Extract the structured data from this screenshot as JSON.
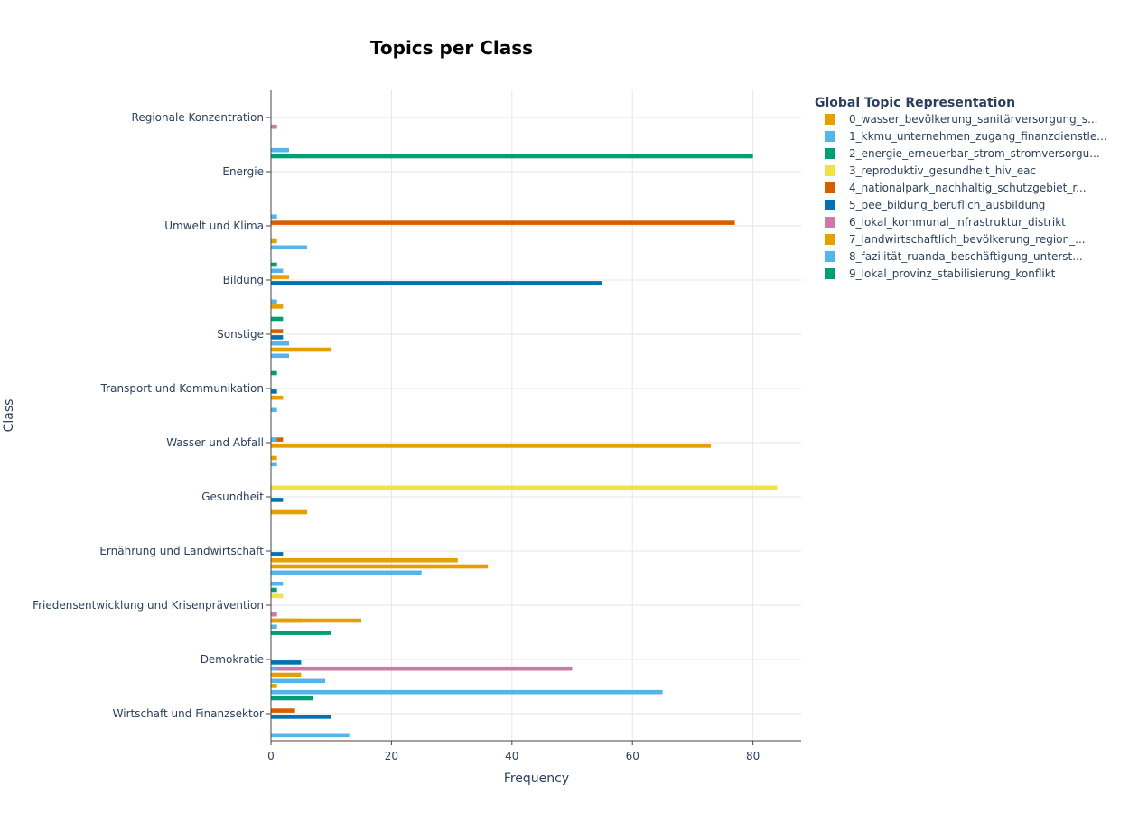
{
  "chart_data": {
    "type": "bar",
    "orientation": "horizontal",
    "title": "Topics per Class",
    "xlabel": "Frequency",
    "ylabel": "Class",
    "xlim": [
      0,
      88
    ],
    "x_ticks": [
      0,
      20,
      40,
      60,
      80
    ],
    "grid": true,
    "legend_position": "right",
    "legend_title": "Global Topic Representation",
    "categories": [
      "Regionale Konzentration",
      "Energie",
      "Umwelt und Klima",
      "Bildung",
      "Sonstige",
      "Transport und Kommunikation",
      "Wasser und Abfall",
      "Gesundheit",
      "Ernährung und Landwirtschaft",
      "Friedensentwicklung und Krisenprävention",
      "Demokratie",
      "Wirtschaft und Finanzsektor"
    ],
    "series": [
      {
        "name": "0_wasser_bevölkerung_sanitärversorgung_s...",
        "color": "#E69F00",
        "values": [
          0,
          0,
          0,
          0,
          2,
          0,
          0,
          0,
          0,
          0,
          0,
          1
        ]
      },
      {
        "name": "1_kkmu_unternehmen_zugang_finanzdienstle...",
        "color": "#56B4E9",
        "values": [
          0,
          0,
          0,
          0,
          0,
          0,
          0,
          0,
          0,
          2,
          0,
          65
        ]
      },
      {
        "name": "2_energie_erneuerbar_strom_stromversorgu...",
        "color": "#009E73",
        "values": [
          0,
          80,
          0,
          1,
          2,
          1,
          0,
          0,
          0,
          1,
          0,
          7
        ]
      },
      {
        "name": "3_reproduktiv_gesundheit_hiv_eac",
        "color": "#F0E442",
        "values": [
          0,
          0,
          0,
          0,
          0,
          0,
          0,
          84,
          0,
          2,
          0,
          0
        ]
      },
      {
        "name": "4_nationalpark_nachhaltig_schutzgebiet_r...",
        "color": "#D55E00",
        "values": [
          0,
          0,
          77,
          0,
          2,
          0,
          2,
          0,
          0,
          0,
          0,
          4
        ]
      },
      {
        "name": "5_pee_bildung_beruflich_ausbildung",
        "color": "#0072B2",
        "values": [
          0,
          0,
          0,
          55,
          2,
          1,
          0,
          2,
          2,
          0,
          5,
          10
        ]
      },
      {
        "name": "6_lokal_kommunal_infrastruktur_distrikt",
        "color": "#CC79A7",
        "values": [
          1,
          0,
          0,
          0,
          2,
          1,
          0,
          0,
          0,
          1,
          50,
          0
        ]
      },
      {
        "name": "7_landwirtschaftlich_bevölkerung_region_...",
        "color": "#E69F00",
        "values": [
          0,
          0,
          1,
          0,
          0,
          0,
          1,
          0,
          36,
          5,
          0,
          0
        ]
      },
      {
        "name": "8_fazilität_ruanda_beschäftigung_unterst...",
        "color": "#56B4E9",
        "values": [
          0,
          0,
          6,
          1,
          3,
          1,
          1,
          0,
          25,
          1,
          9,
          13
        ]
      },
      {
        "name": "9_lokal_provinz_stabilisierung_konflikt",
        "color": "#009E73",
        "values": [
          0,
          0,
          0,
          0,
          0,
          0,
          0,
          0,
          0,
          10,
          0,
          0
        ]
      }
    ],
    "extra_bars": [
      {
        "category": "Energie",
        "series": "8_fazilität_ruanda_beschäftigung_unterst...",
        "value": 3,
        "slot": 1
      },
      {
        "category": "Umwelt und Klima",
        "series": "1_kkmu_unternehmen_zugang_finanzdienstle...",
        "value": 1,
        "slot": 3
      },
      {
        "category": "Bildung",
        "series": "8_fazilität_ruanda_beschäftigung_unterst...",
        "value": 2,
        "slot": 3
      },
      {
        "category": "Bildung",
        "series": "0_wasser_bevölkerung_sanitärversorgung_s...",
        "value": 3,
        "slot": 4
      },
      {
        "category": "Sonstige",
        "series": "8_fazilität_ruanda_beschäftigung_unterst...",
        "value": 3,
        "slot": 6
      },
      {
        "category": "Sonstige",
        "series": "0_wasser_bevölkerung_sanitärversorgung_s...",
        "value": 10,
        "slot": 7
      },
      {
        "category": "Transport und Kommunikation",
        "series": "0_wasser_bevölkerung_sanitärversorgung_s...",
        "value": 2,
        "slot": 6
      },
      {
        "category": "Wasser und Abfall",
        "series": "1_kkmu_unternehmen_zugang_finanzdienstle...",
        "value": 1,
        "slot": 4
      },
      {
        "category": "Wasser und Abfall",
        "series": "0_wasser_bevölkerung_sanitärversorgung_s...",
        "value": 73,
        "slot": 5
      },
      {
        "category": "Gesundheit",
        "series": "0_wasser_bevölkerung_sanitärversorgung_s...",
        "value": 6,
        "slot": 7
      },
      {
        "category": "Ernährung und Landwirtschaft",
        "series": "0_wasser_bevölkerung_sanitärversorgung_s...",
        "value": 31,
        "slot": 6
      },
      {
        "category": "Friedensentwicklung und Krisenprävention",
        "series": "0_wasser_bevölkerung_sanitärversorgung_s...",
        "value": 15,
        "slot": 7
      },
      {
        "category": "Demokratie",
        "series": "1_kkmu_unternehmen_zugang_finanzdienstle...",
        "value": 1,
        "slot": 6
      },
      {
        "category": "Demokratie",
        "series": "0_wasser_bevölkerung_sanitärversorgung_s...",
        "value": 5,
        "slot": 7
      }
    ]
  }
}
